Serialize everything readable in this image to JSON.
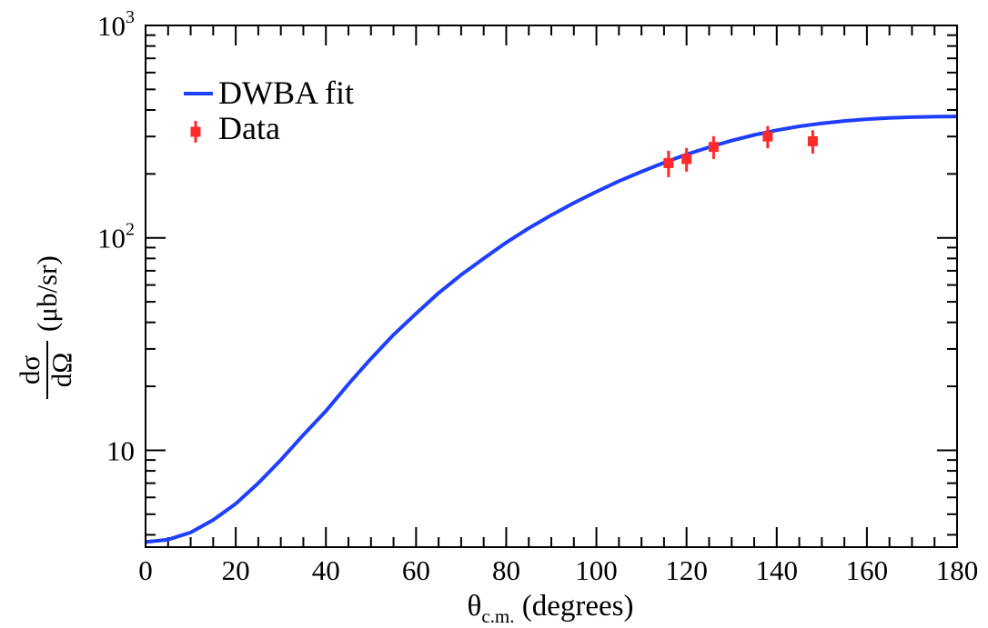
{
  "chart_data": {
    "type": "scatter",
    "title": "",
    "xlabel": {
      "main": "θ",
      "sub": "c.m.",
      "rest": " (degrees)"
    },
    "ylabel": {
      "num": "dσ",
      "den": "dΩ",
      "unit": "(μb/sr)"
    },
    "xlim": [
      0,
      180
    ],
    "ylim": [
      3.5,
      1000
    ],
    "y_scale": "log",
    "grid": false,
    "legend_position": "top-left",
    "x_ticks": [
      0,
      20,
      40,
      60,
      80,
      100,
      120,
      140,
      160,
      180
    ],
    "y_tick_labels": [
      {
        "value": 10,
        "base": "10",
        "exp": ""
      },
      {
        "value": 100,
        "base": "10",
        "exp": "2"
      },
      {
        "value": 1000,
        "base": "10",
        "exp": "3"
      }
    ],
    "series": [
      {
        "name": "DWBA fit",
        "kind": "line",
        "color": "#1f3fff",
        "x": [
          0,
          5,
          10,
          15,
          20,
          25,
          30,
          35,
          40,
          45,
          50,
          55,
          60,
          65,
          70,
          75,
          80,
          85,
          90,
          95,
          100,
          105,
          110,
          115,
          120,
          125,
          130,
          135,
          140,
          145,
          150,
          155,
          160,
          165,
          170,
          175,
          180
        ],
        "y": [
          3.7,
          3.8,
          4.1,
          4.7,
          5.6,
          7.0,
          9.0,
          11.8,
          15.3,
          20.5,
          27.0,
          35.0,
          44.0,
          55.0,
          67.0,
          80.0,
          95.0,
          111.0,
          128.0,
          146.0,
          165.0,
          185.0,
          205.0,
          226.0,
          247.0,
          267.0,
          287.0,
          305.0,
          321.0,
          335.0,
          346.0,
          355.0,
          362.0,
          367.0,
          370.0,
          372.0,
          373.0
        ]
      },
      {
        "name": "Data",
        "kind": "points",
        "color": "#ff2a2a",
        "x": [
          116,
          120,
          126,
          138,
          148
        ],
        "y": [
          225,
          235,
          268,
          300,
          285
        ],
        "yerr": [
          32,
          30,
          33,
          36,
          36
        ]
      }
    ]
  }
}
